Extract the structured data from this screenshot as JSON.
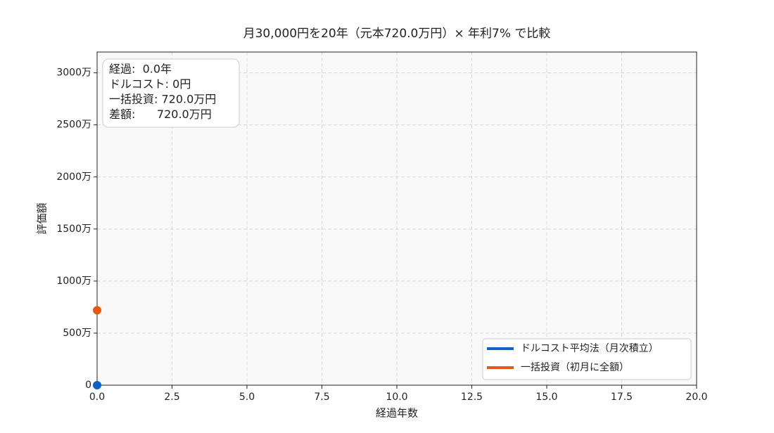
{
  "chart_data": {
    "type": "line",
    "title": "月30,000円を20年（元本720.0万円）× 年利7% で比較",
    "x_label": "経過年数",
    "y_label": "評価額",
    "x": [
      0
    ],
    "series": [
      {
        "name": "ドルコスト平均法（月次積立）",
        "color": "#1060c8",
        "values": [
          0
        ]
      },
      {
        "name": "一括投資（初月に全額）",
        "color": "#e55a14",
        "values": [
          720
        ]
      }
    ],
    "xlim": [
      0,
      20
    ],
    "xticks": [
      {
        "value": 0,
        "label": "0.0"
      },
      2.5,
      {
        "value": 5,
        "label": "5.0"
      },
      7.5,
      {
        "value": 10,
        "label": "10.0"
      },
      12.5,
      {
        "value": 15,
        "label": "15.0"
      },
      17.5,
      {
        "value": 20,
        "label": "20.0"
      }
    ],
    "ylim": [
      0,
      3200
    ],
    "yticks": [
      0,
      {
        "value": 500,
        "label": "500万"
      },
      {
        "value": 1000,
        "label": "1000万"
      },
      {
        "value": 1500,
        "label": "1500万"
      },
      {
        "value": 2000,
        "label": "2000万"
      },
      {
        "value": 2500,
        "label": "2500万"
      },
      {
        "value": 3000,
        "label": "3000万"
      }
    ],
    "grid": true,
    "legend": "lower right",
    "annotation": [
      "経過:  0.0年",
      "ドルコスト: 0円",
      "一括投資: 720.0万円",
      "差額:      720.0万円"
    ]
  }
}
